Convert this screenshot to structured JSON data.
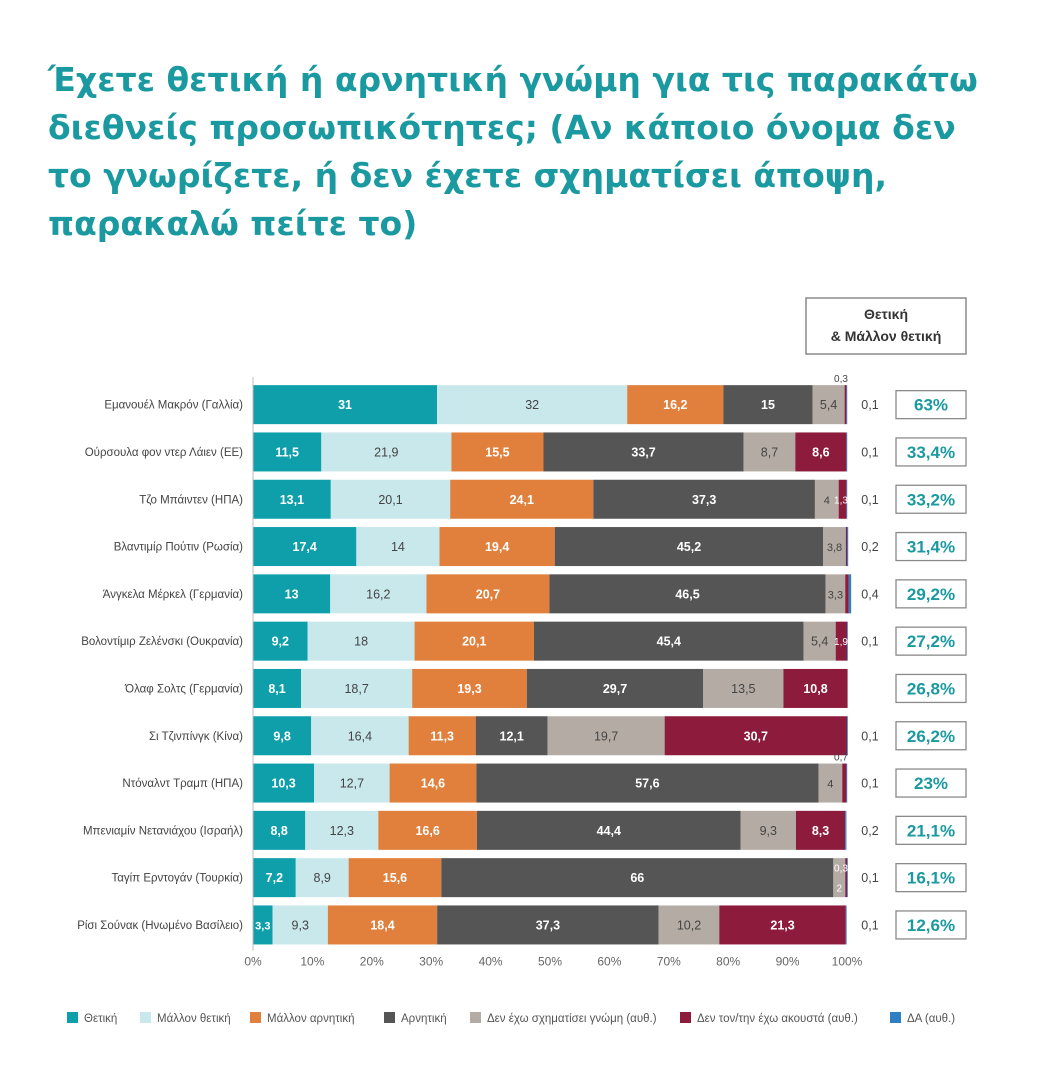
{
  "title": "Έχετε θετική ή αρνητική γνώμη για τις παρακάτω διεθνείς προσωπικότητες;  (Αν κάποιο όνομα δεν το γνωρίζετε, ή δεν έχετε σχηματίσει άποψη, παρακαλώ πείτε το)",
  "summary_header": [
    "Θετική",
    "& Μάλλον θετική"
  ],
  "chart_data": {
    "type": "bar",
    "orientation": "horizontal",
    "stacked": true,
    "categories": [
      "Εμανουέλ Μακρόν (Γαλλία)",
      "Ούρσουλα φον ντερ Λάιεν (ΕΕ)",
      "Τζο Μπάιντεν (ΗΠΑ)",
      "Βλαντιμίρ Πούτιν (Ρωσία)",
      "Άνγκελα Μέρκελ (Γερμανία)",
      "Βολοντίμιρ Ζελένσκι (Ουκρανία)",
      "Όλαφ Σολτς (Γερμανία)",
      "Σι Τζινπίνγκ (Κίνα)",
      "Ντόναλντ Τραμπ (ΗΠΑ)",
      "Μπενιαμίν Νετανιάχου (Ισραήλ)",
      "Ταγίπ Ερντογάν (Τουρκία)",
      "Ρίσι Σούνακ (Ηνωμένο Βασίλειο)"
    ],
    "series": [
      {
        "name": "Θετική",
        "color": "#0f9fab",
        "text_color": "#ffffff",
        "values": [
          31,
          11.5,
          13.1,
          17.4,
          13,
          9.2,
          8.1,
          9.8,
          10.3,
          8.8,
          7.2,
          3.3
        ],
        "labels": [
          "31",
          "11,5",
          "13,1",
          "17,4",
          "13",
          "9,2",
          "8,1",
          "9,8",
          "10,3",
          "8,8",
          "7,2",
          "3,3"
        ]
      },
      {
        "name": "Μάλλον θετική",
        "color": "#c8e8ec",
        "text_color": "#444444",
        "values": [
          32,
          21.9,
          20.1,
          14,
          16.2,
          18,
          18.7,
          16.4,
          12.7,
          12.3,
          8.9,
          9.3
        ],
        "labels": [
          "32",
          "21,9",
          "20,1",
          "14",
          "16,2",
          "18",
          "18,7",
          "16,4",
          "12,7",
          "12,3",
          "8,9",
          "9,3"
        ]
      },
      {
        "name": "Μάλλον αρνητική",
        "color": "#e0803c",
        "text_color": "#ffffff",
        "values": [
          16.2,
          15.5,
          24.1,
          19.4,
          20.7,
          20.1,
          19.3,
          11.3,
          14.6,
          16.6,
          15.6,
          18.4
        ],
        "labels": [
          "16,2",
          "15,5",
          "24,1",
          "19,4",
          "20,7",
          "20,1",
          "19,3",
          "11,3",
          "14,6",
          "16,6",
          "15,6",
          "18,4"
        ]
      },
      {
        "name": "Αρνητική",
        "color": "#555555",
        "text_color": "#ffffff",
        "values": [
          15,
          33.7,
          37.3,
          45.2,
          46.5,
          45.4,
          29.7,
          12.1,
          57.6,
          44.4,
          66,
          37.3
        ],
        "labels": [
          "15",
          "33,7",
          "37,3",
          "45,2",
          "46,5",
          "45,4",
          "29,7",
          "12,1",
          "57,6",
          "44,4",
          "66",
          "37,3"
        ]
      },
      {
        "name": "Δεν έχω σχηματίσει γνώμη (αυθ.)",
        "color": "#b4aca4",
        "text_color": "#444444",
        "values": [
          5.4,
          8.7,
          4,
          3.8,
          3.3,
          5.4,
          13.5,
          19.7,
          4,
          9.3,
          2,
          10.2
        ],
        "labels": [
          "5,4",
          "8,7",
          "4",
          "3,8",
          "3,3",
          "5,4",
          "13,5",
          "19,7",
          "4",
          "9,3",
          "2",
          "10,2"
        ]
      },
      {
        "name": "Δεν τον/την έχω ακουστά (αυθ.)",
        "color": "#8c1b3c",
        "text_color": "#ffffff",
        "values": [
          0.3,
          8.6,
          1.3,
          0.2,
          0.6,
          1.9,
          10.8,
          30.7,
          0.7,
          8.3,
          0.3,
          21.3
        ],
        "labels": [
          "0,3",
          "8,6",
          "1,3",
          "",
          "",
          "1,9",
          "10,8",
          "30,7",
          "0,7",
          "8,3",
          "0,3",
          "21,3"
        ]
      },
      {
        "name": "ΔΑ  (αυθ.)",
        "color": "#2f7fc4",
        "text_color": "#ffffff",
        "values": [
          0.1,
          0.1,
          0.1,
          0.2,
          0.4,
          0.1,
          0,
          0.1,
          0.1,
          0.2,
          0.1,
          0.1
        ],
        "labels": [
          "0,1",
          "0,1",
          "0,1",
          "0,2",
          "0,4",
          "0,1",
          "",
          "0,1",
          "0,1",
          "0,2",
          "0,1",
          "0,1"
        ]
      }
    ],
    "positive_total_labels": [
      "63%",
      "33,4%",
      "33,2%",
      "31,4%",
      "29,2%",
      "27,2%",
      "26,8%",
      "26,2%",
      "23%",
      "21,1%",
      "16,1%",
      "12,6%"
    ],
    "x_ticks": [
      "0%",
      "10%",
      "20%",
      "30%",
      "40%",
      "50%",
      "60%",
      "70%",
      "80%",
      "90%",
      "100%"
    ],
    "xlim": [
      0,
      100
    ],
    "legend_position": "bottom",
    "grid": false
  }
}
